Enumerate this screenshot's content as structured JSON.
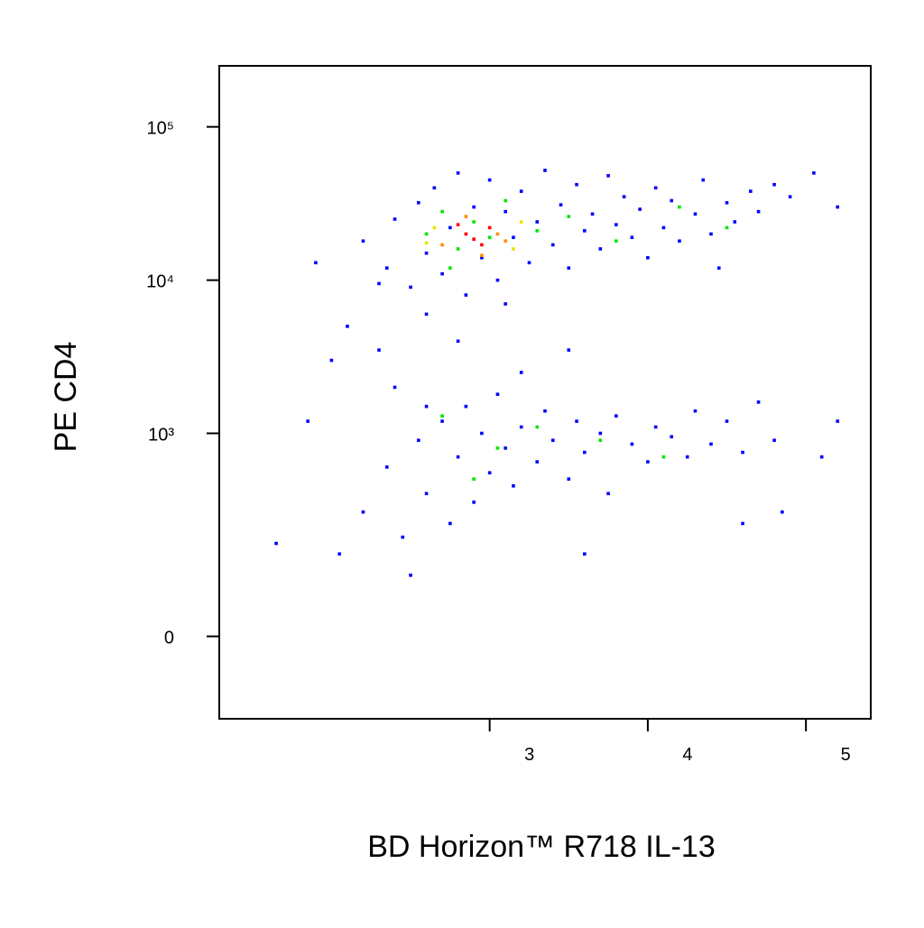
{
  "chart_data": {
    "type": "scatter",
    "x_label": "BD Horizon™ R718 IL-13",
    "y_label": "PE CD4",
    "xlim": [
      1.29,
      5.41
    ],
    "xticks": [
      3,
      4,
      5
    ],
    "ylim": [
      -150,
      250000
    ],
    "yscale": "biexponential",
    "yticks": [
      0,
      {
        "value": 1000,
        "label": "10³"
      },
      {
        "value": 10000,
        "label": "10⁴"
      },
      {
        "value": 100000,
        "label": "10⁵"
      }
    ],
    "series": [
      {
        "color": "#0000ff",
        "x": [
          2.2,
          2.35,
          2.4,
          2.5,
          2.55,
          2.6,
          2.65,
          2.7,
          2.75,
          2.8,
          2.85,
          2.9,
          2.95,
          3.0,
          3.05,
          3.1,
          3.15,
          3.2,
          3.25,
          3.3,
          3.35,
          3.4,
          3.45,
          3.5,
          3.55,
          3.6,
          3.65,
          3.7,
          3.75,
          3.8,
          3.85,
          3.9,
          3.95,
          4.0,
          4.05,
          4.1,
          4.15,
          4.2,
          4.3,
          4.35,
          4.4,
          4.5,
          4.55,
          4.65,
          4.7,
          4.8,
          4.9,
          5.05,
          5.2,
          2.3,
          3.1,
          2.6,
          4.45,
          1.9,
          2.1,
          2.0,
          2.4,
          2.8,
          3.2,
          2.6,
          1.85,
          3.5,
          2.3,
          2.2,
          2.35,
          2.45,
          2.55,
          2.6,
          2.7,
          2.75,
          2.8,
          2.85,
          2.9,
          2.95,
          3.0,
          3.05,
          3.1,
          3.15,
          3.2,
          3.3,
          3.35,
          3.4,
          3.5,
          3.55,
          3.6,
          3.7,
          3.75,
          3.8,
          3.9,
          4.0,
          4.05,
          4.15,
          4.25,
          4.3,
          4.4,
          4.5,
          4.6,
          4.7,
          4.8,
          4.85,
          2.05,
          1.65,
          2.5,
          3.6,
          4.6,
          5.2,
          5.1
        ],
        "y": [
          18000,
          12000,
          25000,
          9000,
          32000,
          15000,
          40000,
          11000,
          22000,
          50000,
          8000,
          30000,
          14000,
          45000,
          10000,
          28000,
          19000,
          38000,
          13000,
          24000,
          52000,
          17000,
          31000,
          12000,
          42000,
          21000,
          27000,
          16000,
          48000,
          23000,
          35000,
          19000,
          29000,
          14000,
          40000,
          22000,
          33000,
          18000,
          27000,
          45000,
          20000,
          32000,
          24000,
          38000,
          28000,
          42000,
          35000,
          50000,
          30000,
          9500,
          7000,
          6000,
          12000,
          13000,
          5000,
          3000,
          2000,
          4000,
          2500,
          1500,
          1200,
          3500,
          3500,
          300,
          600,
          200,
          900,
          400,
          1200,
          250,
          700,
          1500,
          350,
          1000,
          550,
          1800,
          800,
          450,
          1100,
          650,
          1400,
          900,
          500,
          1200,
          750,
          1000,
          400,
          1300,
          850,
          650,
          1100,
          950,
          700,
          1400,
          850,
          1200,
          750,
          1600,
          900,
          300,
          150,
          180,
          100,
          150,
          250,
          1200,
          700
        ]
      },
      {
        "color": "#00e600",
        "x": [
          2.6,
          2.7,
          2.8,
          2.9,
          3.0,
          3.1,
          3.3,
          3.5,
          3.8,
          4.2,
          4.5,
          2.75,
          3.05,
          3.3,
          2.9,
          3.7,
          4.1,
          2.7
        ],
        "y": [
          20000,
          28000,
          16000,
          24000,
          19000,
          33000,
          21000,
          26000,
          18000,
          30000,
          22000,
          12000,
          800,
          1100,
          500,
          900,
          700,
          1300
        ]
      },
      {
        "color": "#e6e600",
        "x": [
          2.65,
          3.15,
          2.6,
          3.2
        ],
        "y": [
          22000,
          16000,
          17500,
          24000
        ]
      },
      {
        "color": "#ff8c00",
        "x": [
          2.7,
          3.05,
          2.85,
          2.95,
          3.1
        ],
        "y": [
          17000,
          20000,
          26000,
          14500,
          18000
        ]
      },
      {
        "color": "#ff0000",
        "x": [
          2.85,
          2.95,
          2.8,
          3.0,
          2.9
        ],
        "y": [
          20000,
          17000,
          23000,
          22000,
          18500
        ]
      }
    ]
  }
}
